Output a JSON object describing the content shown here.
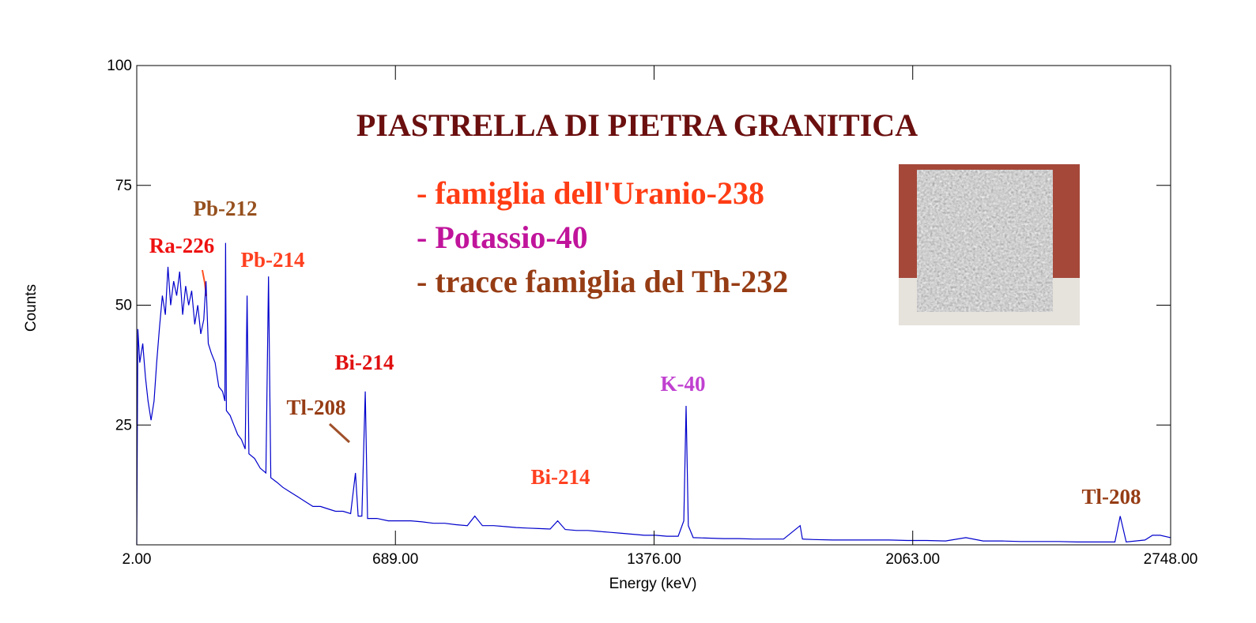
{
  "chart_data": {
    "type": "line",
    "title": "PIASTRELLA DI PIETRA GRANITICA",
    "x_label": "Energy (keV)",
    "y_label": "Counts",
    "xlim": [
      2,
      2748
    ],
    "ylim": [
      0,
      100
    ],
    "xticks": [
      {
        "value": 2,
        "label": "2.00"
      },
      {
        "value": 689,
        "label": "689.00"
      },
      {
        "value": 1376,
        "label": "1376.00"
      },
      {
        "value": 2063,
        "label": "2063.00"
      },
      {
        "value": 2748,
        "label": "2748.00"
      }
    ],
    "yticks": [
      25,
      50,
      75,
      100
    ],
    "color": "#0000cc",
    "notes": [
      {
        "text": "- famiglia dell'Uranio-238",
        "color": "#ff3c14"
      },
      {
        "text": "- Potassio-40",
        "color": "#c0149b"
      },
      {
        "text": "- tracce famiglia del Th-232",
        "color": "#963c14"
      }
    ],
    "annotations": [
      {
        "text": "Ra-226",
        "color": "#ee1111"
      },
      {
        "text": "Pb-212",
        "color": "#96501e"
      },
      {
        "text": "Pb-214",
        "color": "#ff4020"
      },
      {
        "text": "Bi-214",
        "color": "#e01010"
      },
      {
        "text": "Tl-208",
        "color": "#963c14"
      },
      {
        "text": "K-40",
        "color": "#c040d0"
      },
      {
        "text": "Bi-214",
        "color": "#ff4020"
      },
      {
        "text": "Tl-208",
        "color": "#963c14"
      }
    ],
    "x": [
      2,
      5,
      10,
      18,
      25,
      32,
      40,
      48,
      55,
      62,
      70,
      78,
      85,
      92,
      100,
      108,
      116,
      124,
      132,
      140,
      148,
      156,
      164,
      172,
      180,
      186,
      192,
      200,
      210,
      220,
      230,
      236,
      238,
      240,
      250,
      260,
      270,
      280,
      290,
      295,
      300,
      315,
      330,
      345,
      352,
      358,
      375,
      390,
      410,
      430,
      450,
      470,
      490,
      510,
      530,
      550,
      570,
      583,
      590,
      600,
      609,
      615,
      640,
      670,
      700,
      730,
      760,
      790,
      820,
      850,
      880,
      900,
      920,
      950,
      980,
      1010,
      1040,
      1070,
      1100,
      1120,
      1140,
      1170,
      1200,
      1230,
      1260,
      1290,
      1320,
      1350,
      1380,
      1410,
      1440,
      1455,
      1461,
      1467,
      1480,
      1520,
      1560,
      1600,
      1640,
      1680,
      1720,
      1764,
      1770,
      1800,
      1850,
      1900,
      1950,
      2000,
      2050,
      2100,
      2150,
      2204,
      2250,
      2300,
      2350,
      2400,
      2450,
      2500,
      2550,
      2600,
      2614,
      2630,
      2680,
      2700,
      2720,
      2748
    ],
    "values": [
      0,
      45,
      38,
      42,
      35,
      30,
      26,
      30,
      38,
      45,
      52,
      48,
      58,
      50,
      55,
      52,
      57,
      48,
      54,
      50,
      53,
      46,
      50,
      44,
      47,
      55,
      42,
      40,
      38,
      33,
      32,
      30,
      63,
      28,
      27,
      25,
      23,
      22,
      20,
      52,
      19,
      18,
      16,
      15,
      56,
      14,
      13,
      12,
      11,
      10,
      9,
      8,
      8,
      7.5,
      7,
      7,
      6.5,
      15,
      6,
      6,
      32,
      5.5,
      5.5,
      5,
      5,
      5,
      4.8,
      4.5,
      4.5,
      4.2,
      4,
      6,
      4,
      4,
      3.8,
      3.6,
      3.5,
      3.4,
      3.3,
      5,
      3.2,
      3,
      3,
      2.8,
      2.6,
      2.4,
      2.2,
      2,
      2,
      1.8,
      1.8,
      5,
      29,
      4,
      1.5,
      1.4,
      1.3,
      1.3,
      1.2,
      1.2,
      1.2,
      4,
      1.2,
      1.1,
      1,
      1,
      1,
      1,
      0.9,
      0.9,
      0.8,
      1.5,
      0.8,
      0.8,
      0.7,
      0.7,
      0.7,
      0.6,
      0.6,
      0.6,
      6,
      0.6,
      1,
      2,
      2,
      1.5
    ]
  }
}
